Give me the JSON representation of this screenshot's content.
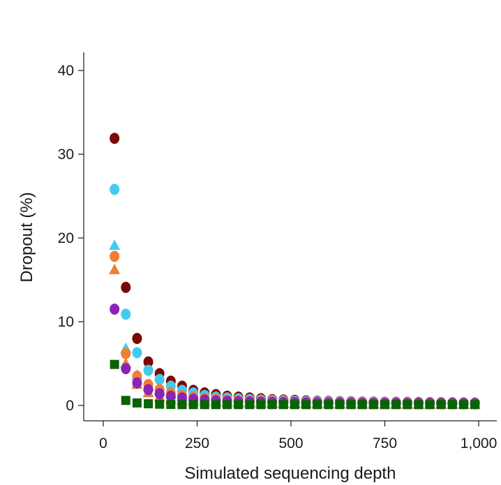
{
  "chart_data": {
    "type": "scatter",
    "xlabel": "Simulated sequencing depth",
    "ylabel": "Dropout (%)",
    "xlim": [
      -50,
      1050
    ],
    "ylim": [
      -2,
      42
    ],
    "xticks": [
      0,
      250,
      500,
      750,
      1000
    ],
    "xtick_labels": [
      "0",
      "250",
      "500",
      "750",
      "1,000"
    ],
    "yticks": [
      0,
      10,
      20,
      30,
      40
    ],
    "ytick_labels": [
      "0",
      "10",
      "20",
      "30",
      "40"
    ],
    "x": [
      30,
      60,
      90,
      120,
      150,
      180,
      210,
      240,
      270,
      300,
      330,
      360,
      390,
      420,
      450,
      480,
      510,
      540,
      570,
      600,
      630,
      660,
      690,
      720,
      750,
      780,
      810,
      840,
      870,
      900,
      930,
      960,
      990
    ],
    "series": [
      {
        "marker": "circle",
        "color": "#7a0a06",
        "values": [
          31.9,
          14.1,
          8.0,
          5.2,
          3.8,
          2.9,
          2.3,
          1.8,
          1.5,
          1.3,
          1.1,
          1.0,
          0.9,
          0.8,
          0.7,
          0.65,
          0.6,
          0.55,
          0.5,
          0.48,
          0.45,
          0.43,
          0.41,
          0.4,
          0.38,
          0.37,
          0.36,
          0.35,
          0.34,
          0.33,
          0.32,
          0.31,
          0.3
        ]
      },
      {
        "marker": "circle",
        "color": "#43cbee",
        "values": [
          25.8,
          10.9,
          6.3,
          4.2,
          3.1,
          2.3,
          1.8,
          1.5,
          1.2,
          1.0,
          0.9,
          0.8,
          0.72,
          0.65,
          0.6,
          0.55,
          0.5,
          0.47,
          0.44,
          0.42,
          0.4,
          0.38,
          0.36,
          0.35,
          0.34,
          0.33,
          0.32,
          0.31,
          0.3,
          0.29,
          0.28,
          0.28,
          0.27
        ]
      },
      {
        "marker": "triangle",
        "color": "#43cbee",
        "values": [
          19.2,
          6.9,
          3.7,
          2.4,
          1.8,
          1.4,
          1.1,
          0.9,
          0.8,
          0.7,
          0.6,
          0.55,
          0.5,
          0.47,
          0.44,
          0.42,
          0.4,
          0.38,
          0.36,
          0.35,
          0.34,
          0.33,
          0.32,
          0.31,
          0.3,
          0.3,
          0.29,
          0.29,
          0.28,
          0.28,
          0.27,
          0.27,
          0.27
        ]
      },
      {
        "marker": "circle",
        "color": "#f07f32",
        "values": [
          17.8,
          6.2,
          3.5,
          2.5,
          1.9,
          1.5,
          1.2,
          1.0,
          0.85,
          0.75,
          0.65,
          0.6,
          0.55,
          0.5,
          0.46,
          0.43,
          0.4,
          0.38,
          0.36,
          0.34,
          0.33,
          0.32,
          0.31,
          0.3,
          0.29,
          0.28,
          0.28,
          0.27,
          0.27,
          0.26,
          0.26,
          0.25,
          0.25
        ]
      },
      {
        "marker": "triangle",
        "color": "#f07f32",
        "values": [
          16.3,
          5.1,
          2.6,
          1.6,
          1.1,
          0.85,
          0.7,
          0.6,
          0.52,
          0.46,
          0.42,
          0.39,
          0.36,
          0.34,
          0.32,
          0.31,
          0.3,
          0.29,
          0.28,
          0.27,
          0.26,
          0.26,
          0.25,
          0.25,
          0.24,
          0.24,
          0.24,
          0.23,
          0.23,
          0.23,
          0.22,
          0.22,
          0.22
        ]
      },
      {
        "marker": "circle",
        "color": "#8a24b8",
        "values": [
          11.5,
          4.4,
          2.7,
          1.9,
          1.4,
          1.1,
          0.9,
          0.75,
          0.65,
          0.55,
          0.5,
          0.45,
          0.42,
          0.39,
          0.36,
          0.34,
          0.32,
          0.3,
          0.29,
          0.28,
          0.27,
          0.26,
          0.25,
          0.25,
          0.24,
          0.24,
          0.23,
          0.23,
          0.22,
          0.22,
          0.22,
          0.21,
          0.21
        ]
      },
      {
        "marker": "square",
        "color": "#0a6303",
        "values": [
          4.9,
          0.6,
          0.3,
          0.2,
          0.15,
          0.12,
          0.1,
          0.1,
          0.1,
          0.1,
          0.1,
          0.1,
          0.1,
          0.1,
          0.1,
          0.1,
          0.1,
          0.1,
          0.1,
          0.1,
          0.1,
          0.1,
          0.1,
          0.1,
          0.1,
          0.1,
          0.1,
          0.1,
          0.1,
          0.1,
          0.1,
          0.1,
          0.1
        ]
      }
    ]
  }
}
